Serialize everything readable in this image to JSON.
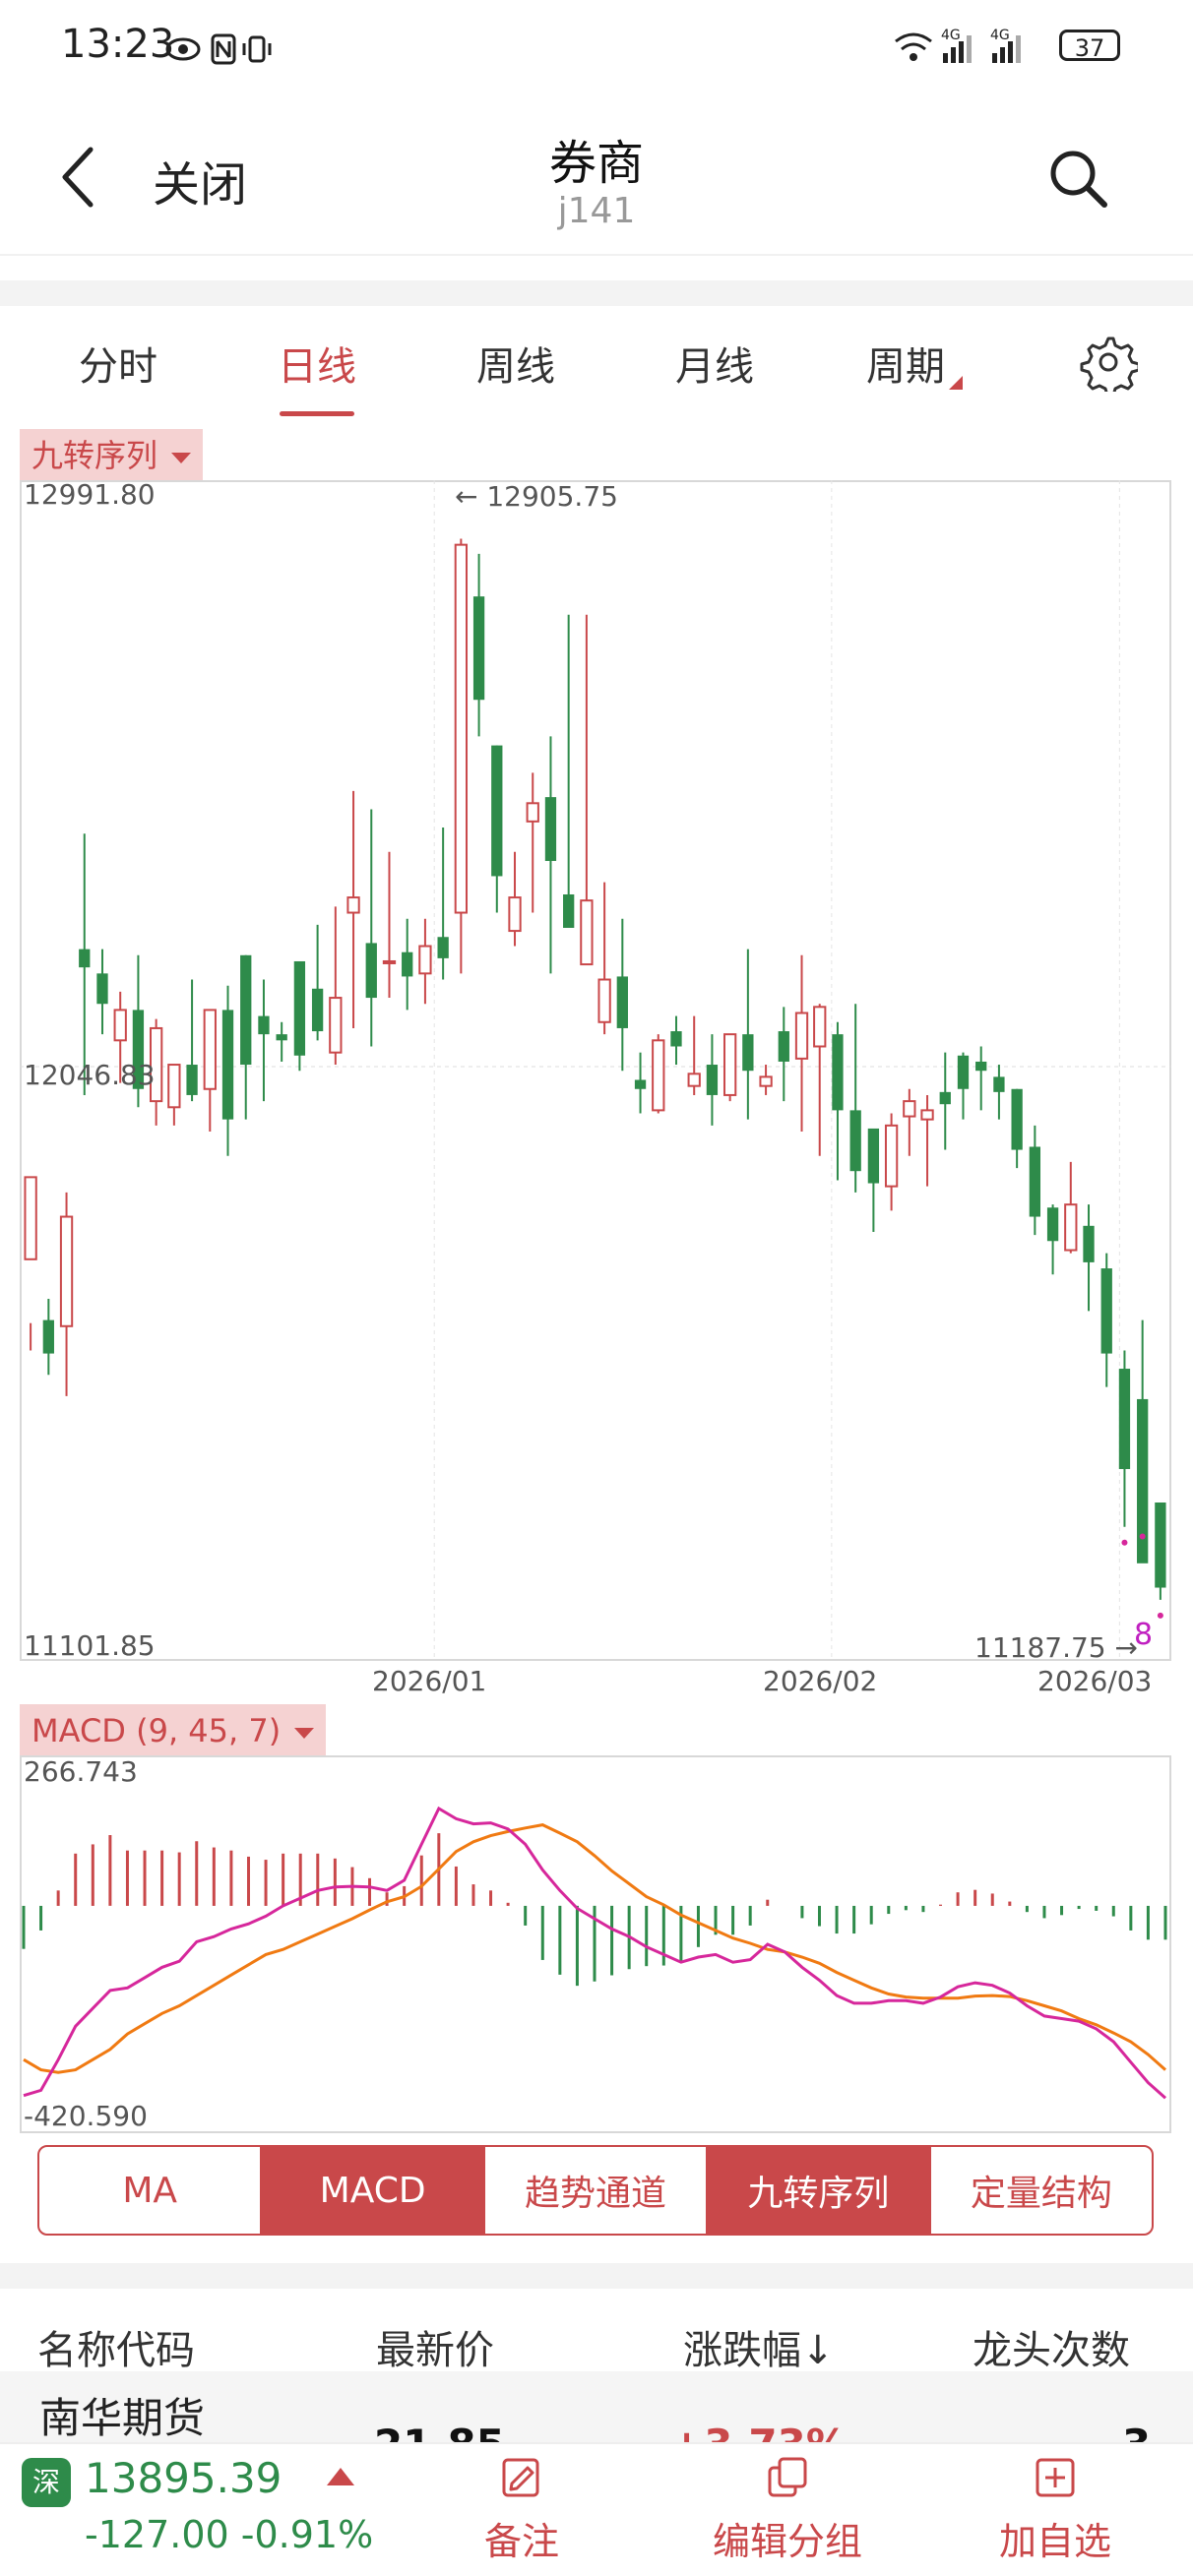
{
  "status_bar": {
    "time": "13:23",
    "icons_text": "4G 4G",
    "battery": "37"
  },
  "header": {
    "close_label": "关闭",
    "title": "券商",
    "subtitle": "j141"
  },
  "period_tabs": [
    {
      "label": "分时",
      "active": false
    },
    {
      "label": "日线",
      "active": true
    },
    {
      "label": "周线",
      "active": false
    },
    {
      "label": "月线",
      "active": false
    },
    {
      "label": "周期",
      "active": false
    }
  ],
  "kline": {
    "indicator_label": "九转序列",
    "y_max_label": "12991.80",
    "y_mid_label": "12046.83",
    "y_min_label": "11101.85",
    "high_marker": "← 12905.75",
    "low_marker": "11187.75 →",
    "x_labels": [
      "2026/01",
      "2026/02",
      "2026/03"
    ],
    "sequence_number": "8"
  },
  "macd": {
    "label": "MACD (9, 45, 7)",
    "y_max_label": "266.743",
    "y_min_label": "-420.590"
  },
  "indicator_buttons": [
    {
      "label": "MA",
      "active": false
    },
    {
      "label": "MACD",
      "active": true
    },
    {
      "label": "趋势通道",
      "active": false
    },
    {
      "label": "九转序列",
      "active": true
    },
    {
      "label": "定量结构",
      "active": false
    }
  ],
  "list": {
    "headers": {
      "name": "名称代码",
      "price": "最新价",
      "change": "涨跌幅↓",
      "count": "龙头次数"
    },
    "first_row": {
      "name": "南华期货",
      "price": "21.85",
      "change": "+3.73%",
      "count": "3"
    }
  },
  "bottom_bar": {
    "exchange_badge": "深",
    "index_price": "13895.39",
    "index_change": "-127.00  -0.91%",
    "actions": [
      {
        "label": "备注",
        "icon": "note-edit-icon"
      },
      {
        "label": "编辑分组",
        "icon": "copy-group-icon"
      },
      {
        "label": "加自选",
        "icon": "add-box-icon"
      }
    ]
  },
  "colors": {
    "accent": "#c9484a",
    "up": "#c9484a",
    "down": "#2e8b4a",
    "dif": "#d6279b",
    "dea": "#f07a12"
  },
  "chart_data": [
    {
      "type": "candlestick",
      "title": "",
      "y_range": [
        11101.85,
        12991.8
      ],
      "high": 12905.75,
      "low": 11187.75,
      "x_labels": [
        "2026/01",
        "2026/02",
        "2026/03"
      ],
      "ohlc": [
        [
          11730,
          11865,
          11625,
          11580
        ],
        [
          11630,
          11575,
          11665,
          11540
        ],
        [
          11620,
          11800,
          11840,
          11505
        ],
        [
          12240,
          12210,
          12430,
          12000
        ],
        [
          12200,
          12150,
          12240,
          12100
        ],
        [
          12090,
          12140,
          12170,
          12020
        ],
        [
          12140,
          12010,
          12230,
          11980
        ],
        [
          11990,
          12110,
          12125,
          11950
        ],
        [
          11980,
          12050,
          12050,
          11950
        ],
        [
          12050,
          12000,
          12190,
          11990
        ],
        [
          12010,
          12140,
          12140,
          11940
        ],
        [
          12140,
          11960,
          12180,
          11900
        ],
        [
          12230,
          12050,
          12230,
          11960
        ],
        [
          12130,
          12100,
          12190,
          11990
        ],
        [
          12100,
          12090,
          12120,
          12055
        ],
        [
          12220,
          12065,
          12220,
          12040
        ],
        [
          12175,
          12105,
          12280,
          12090
        ],
        [
          12070,
          12160,
          12310,
          12050
        ],
        [
          12300,
          12325,
          12500,
          12110
        ],
        [
          12250,
          12160,
          12470,
          12080
        ],
        [
          12220,
          12220,
          12400,
          12160
        ],
        [
          12235,
          12195,
          12290,
          12140
        ],
        [
          12200,
          12245,
          12290,
          12150
        ],
        [
          12260,
          12225,
          12440,
          12190
        ],
        [
          12300,
          12905,
          12915,
          12200
        ],
        [
          12820,
          12650,
          12890,
          12590
        ],
        [
          12575,
          12360,
          12575,
          12300
        ],
        [
          12270,
          12325,
          12400,
          12245
        ],
        [
          12450,
          12480,
          12530,
          12300
        ],
        [
          12490,
          12385,
          12590,
          12200
        ],
        [
          12330,
          12275,
          12790,
          12280
        ],
        [
          12215,
          12320,
          12790,
          12260
        ],
        [
          12120,
          12190,
          12350,
          12100
        ],
        [
          12195,
          12110,
          12290,
          12040
        ],
        [
          12025,
          12010,
          12070,
          11970
        ],
        [
          11975,
          12090,
          12100,
          11970
        ],
        [
          12105,
          12080,
          12130,
          12050
        ],
        [
          12015,
          12035,
          12130,
          12000
        ],
        [
          12050,
          12000,
          12100,
          11950
        ],
        [
          12000,
          12100,
          12100,
          11990
        ],
        [
          12100,
          12040,
          12240,
          11960
        ],
        [
          12015,
          12030,
          12050,
          12000
        ],
        [
          12105,
          12055,
          12145,
          11990
        ],
        [
          12060,
          12135,
          12230,
          11940
        ],
        [
          12080,
          12145,
          12150,
          11900
        ],
        [
          12100,
          11975,
          12120,
          11860
        ],
        [
          11975,
          11875,
          12150,
          11840
        ],
        [
          11945,
          11855,
          11940,
          11775
        ],
        [
          11850,
          11950,
          11970,
          11810
        ],
        [
          11965,
          11990,
          12010,
          11900
        ],
        [
          11960,
          11975,
          12000,
          11850
        ],
        [
          12005,
          11985,
          12070,
          11910
        ],
        [
          12065,
          12010,
          12070,
          11960
        ],
        [
          12055,
          12040,
          12080,
          11975
        ],
        [
          12030,
          12005,
          12050,
          11960
        ],
        [
          12010,
          11910,
          12010,
          11880
        ],
        [
          11915,
          11800,
          11950,
          11770
        ],
        [
          11815,
          11760,
          11820,
          11705
        ],
        [
          11745,
          11820,
          11890,
          11740
        ],
        [
          11785,
          11725,
          11820,
          11645
        ],
        [
          11715,
          11575,
          11740,
          11520
        ],
        [
          11550,
          11385,
          11580,
          11290
        ],
        [
          11500,
          11230,
          11630,
          11300
        ],
        [
          11330,
          11190,
          11330,
          11170
        ]
      ]
    },
    {
      "type": "macd",
      "title": "MACD (9, 45, 7)",
      "y_range": [
        -420.59,
        266.743
      ],
      "series": [
        {
          "name": "DIF"
        },
        {
          "name": "DEA"
        }
      ],
      "dif": [
        -370,
        -360,
        -300,
        -235,
        -200,
        -165,
        -160,
        -140,
        -120,
        -108,
        -70,
        -60,
        -45,
        -35,
        -20,
        0,
        15,
        30,
        37,
        38,
        37,
        30,
        50,
        120,
        190,
        170,
        160,
        162,
        150,
        120,
        70,
        30,
        -5,
        -25,
        -45,
        -60,
        -80,
        -95,
        -110,
        -100,
        -95,
        -110,
        -105,
        -75,
        -90,
        -120,
        -145,
        -175,
        -190,
        -190,
        -185,
        -185,
        -190,
        -178,
        -158,
        -150,
        -155,
        -170,
        -195,
        -215,
        -220,
        -225,
        -240,
        -265,
        -305,
        -345,
        -375
      ],
      "dea": [
        -300,
        -320,
        -325,
        -320,
        -300,
        -280,
        -250,
        -230,
        -210,
        -195,
        -175,
        -155,
        -135,
        -115,
        -95,
        -85,
        -70,
        -55,
        -40,
        -25,
        -8,
        8,
        18,
        38,
        72,
        106,
        125,
        137,
        145,
        152,
        158,
        142,
        125,
        98,
        68,
        43,
        18,
        2,
        -18,
        -33,
        -48,
        -63,
        -73,
        -85,
        -90,
        -100,
        -112,
        -130,
        -145,
        -160,
        -172,
        -178,
        -180,
        -180,
        -180,
        -176,
        -175,
        -177,
        -185,
        -195,
        -205,
        -220,
        -232,
        -248,
        -265,
        -290,
        -320
      ]
    }
  ]
}
